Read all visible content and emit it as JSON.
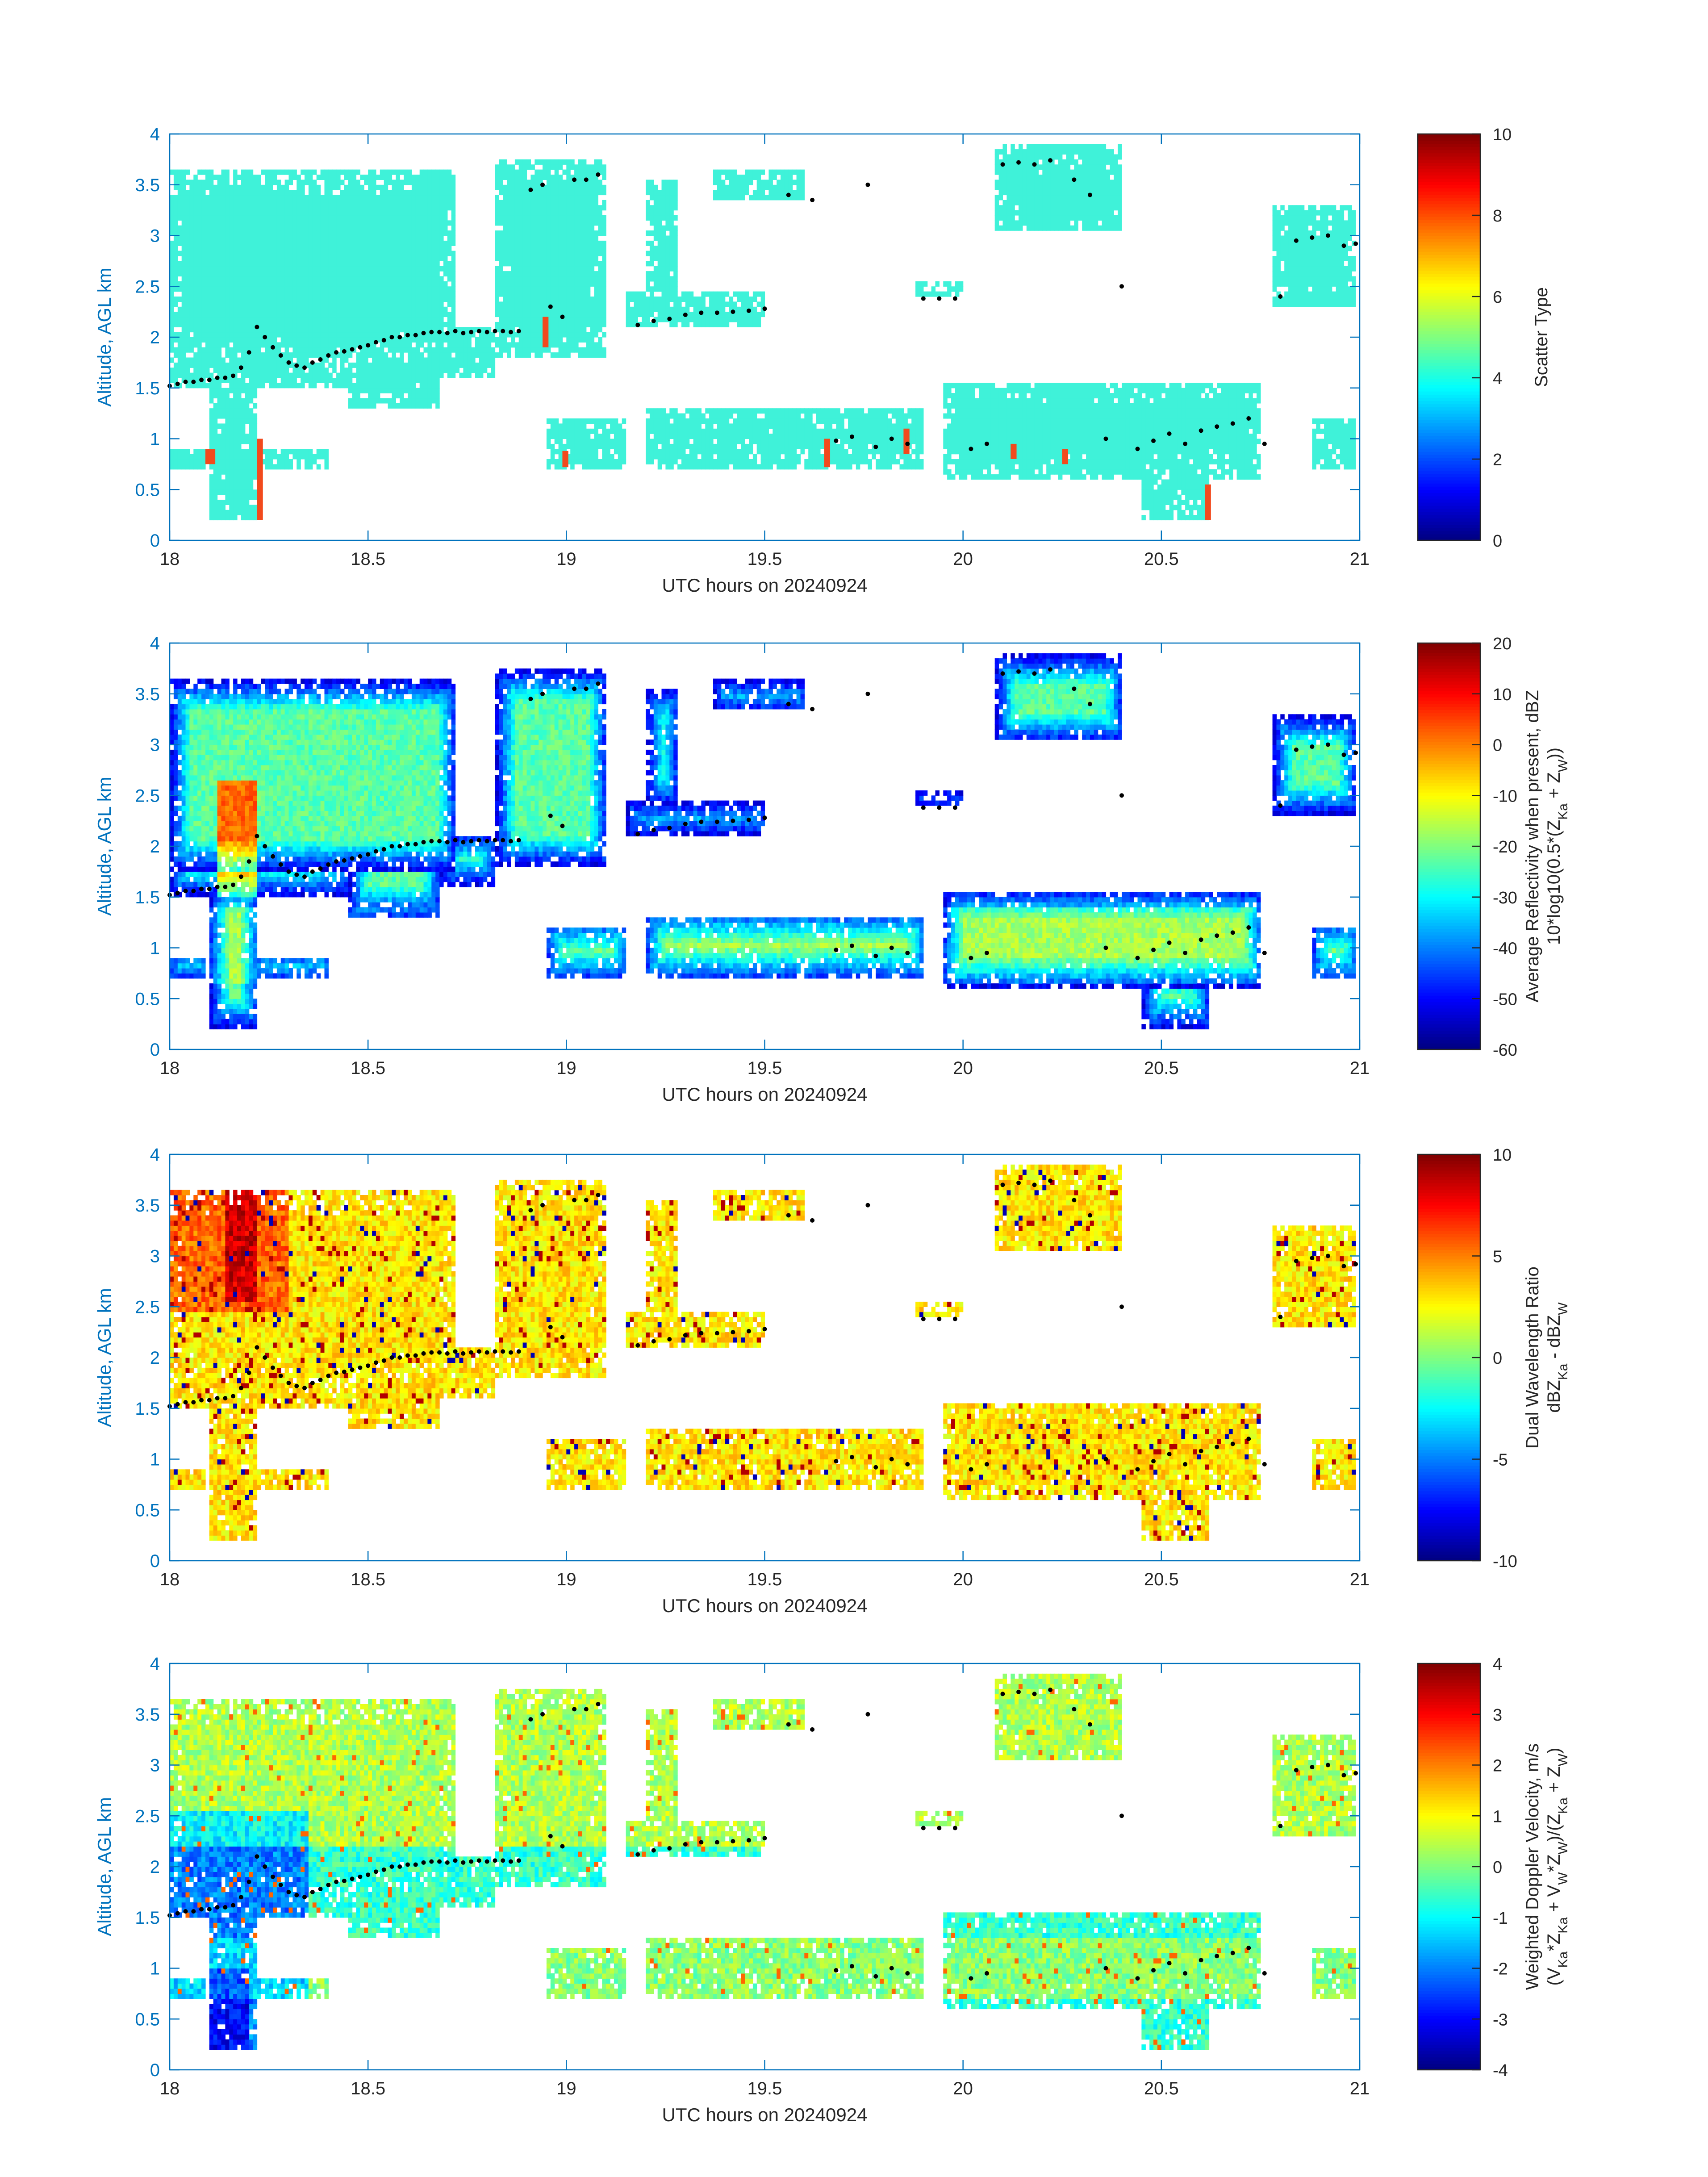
{
  "palette": {
    "axis_color": "#0072BD",
    "text_color": "#262626",
    "cloud_fill": "#3FF2D9",
    "rare_fill": "#F24A1D",
    "lcl_dot_color": "#000000"
  },
  "chart_data": [
    {
      "type": "heatmap",
      "title": "",
      "xlabel": "UTC hours on 20240924",
      "ylabel": "Altitude, AGL km",
      "xlim": [
        18,
        21
      ],
      "ylim": [
        0,
        4
      ],
      "xticks": [
        "18",
        "18.5",
        "19",
        "19.5",
        "20",
        "20.5",
        "21"
      ],
      "yticks": [
        "0",
        "0.5",
        "1",
        "1.5",
        "2",
        "2.5",
        "3",
        "3.5",
        "4"
      ],
      "grid": false,
      "colorbar": {
        "label": "Scatter Type",
        "label2": "",
        "colormap": "jet",
        "limits": [
          0,
          10
        ],
        "ticks": [
          "0",
          "2",
          "4",
          "6",
          "8",
          "10"
        ]
      },
      "field": "scatter_type"
    },
    {
      "type": "heatmap",
      "title": "",
      "xlabel": "UTC hours on 20240924",
      "ylabel": "Altitude, AGL km",
      "xlim": [
        18,
        21
      ],
      "ylim": [
        0,
        4
      ],
      "xticks": [
        "18",
        "18.5",
        "19",
        "19.5",
        "20",
        "20.5",
        "21"
      ],
      "yticks": [
        "0",
        "0.5",
        "1",
        "1.5",
        "2",
        "2.5",
        "3",
        "3.5",
        "4"
      ],
      "grid": false,
      "colorbar": {
        "label": "Average Reflectivity when present, dBZ",
        "label2": "10*log10(0.5*(Z_Ka + Z_W))",
        "colormap": "jet",
        "limits": [
          -60,
          20
        ],
        "ticks": [
          "-60",
          "-50",
          "-40",
          "-30",
          "-20",
          "-10",
          "0",
          "10",
          "20"
        ]
      },
      "field": "reflectivity"
    },
    {
      "type": "heatmap",
      "title": "",
      "xlabel": "UTC hours on 20240924",
      "ylabel": "Altitude, AGL km",
      "xlim": [
        18,
        21
      ],
      "ylim": [
        0,
        4
      ],
      "xticks": [
        "18",
        "18.5",
        "19",
        "19.5",
        "20",
        "20.5",
        "21"
      ],
      "yticks": [
        "0",
        "0.5",
        "1",
        "1.5",
        "2",
        "2.5",
        "3",
        "3.5",
        "4"
      ],
      "grid": false,
      "colorbar": {
        "label": "Dual Wavelength Ratio",
        "label2": "dBZ_Ka - dBZ_W",
        "colormap": "jet",
        "limits": [
          -10,
          10
        ],
        "ticks": [
          "-10",
          "-5",
          "0",
          "5",
          "10"
        ]
      },
      "field": "dwr"
    },
    {
      "type": "heatmap",
      "title": "",
      "xlabel": "UTC hours on 20240924",
      "ylabel": "Altitude, AGL km",
      "xlim": [
        18,
        21
      ],
      "ylim": [
        0,
        4
      ],
      "xticks": [
        "18",
        "18.5",
        "19",
        "19.5",
        "20",
        "20.5",
        "21"
      ],
      "yticks": [
        "0",
        "0.5",
        "1",
        "1.5",
        "2",
        "2.5",
        "3",
        "3.5",
        "4"
      ],
      "grid": false,
      "colorbar": {
        "label": "Weighted Doppler Velocity, m/s",
        "label2": "(V_Ka*Z_Ka + V_W*Z_W)/(Z_Ka + Z_W)",
        "colormap": "jet",
        "limits": [
          -4,
          4
        ],
        "ticks": [
          "-4",
          "-3",
          "-2",
          "-1",
          "0",
          "1",
          "2",
          "3",
          "4"
        ]
      },
      "field": "velocity"
    }
  ],
  "cloud_regions": [
    {
      "t0": 18.0,
      "t1": 18.72,
      "z0": 1.75,
      "z1": 3.6
    },
    {
      "t0": 18.0,
      "t1": 18.45,
      "z0": 1.5,
      "z1": 3.6
    },
    {
      "t0": 18.1,
      "t1": 18.22,
      "z0": 0.2,
      "z1": 1.6
    },
    {
      "t0": 18.45,
      "t1": 18.68,
      "z0": 1.3,
      "z1": 2.1
    },
    {
      "t0": 18.68,
      "t1": 18.82,
      "z0": 1.6,
      "z1": 2.1
    },
    {
      "t0": 18.82,
      "t1": 19.1,
      "z0": 1.8,
      "z1": 3.7
    },
    {
      "t0": 19.15,
      "t1": 19.5,
      "z0": 2.1,
      "z1": 2.4
    },
    {
      "t0": 19.2,
      "t1": 19.28,
      "z0": 2.4,
      "z1": 3.5
    },
    {
      "t0": 19.37,
      "t1": 19.6,
      "z0": 3.3,
      "z1": 3.6
    },
    {
      "t0": 19.88,
      "t1": 20.0,
      "z0": 2.35,
      "z1": 2.5
    },
    {
      "t0": 20.08,
      "t1": 20.4,
      "z0": 3.0,
      "z1": 3.85
    },
    {
      "t0": 20.78,
      "t1": 20.99,
      "z0": 2.3,
      "z1": 3.25
    },
    {
      "t0": 18.0,
      "t1": 18.4,
      "z0": 0.7,
      "z1": 0.9
    },
    {
      "t0": 18.95,
      "t1": 19.15,
      "z0": 0.7,
      "z1": 1.2
    },
    {
      "t0": 19.2,
      "t1": 19.9,
      "z0": 0.7,
      "z1": 1.3
    },
    {
      "t0": 19.95,
      "t1": 20.75,
      "z0": 0.6,
      "z1": 1.55
    },
    {
      "t0": 20.45,
      "t1": 20.62,
      "z0": 0.2,
      "z1": 0.8
    },
    {
      "t0": 20.88,
      "t1": 20.99,
      "z0": 0.7,
      "z1": 1.2
    }
  ],
  "rare_columns": [
    {
      "t": 18.09,
      "z0": 0.75,
      "z1": 0.9
    },
    {
      "t": 18.1,
      "z0": 0.75,
      "z1": 0.9
    },
    {
      "t": 18.22,
      "z0": 0.2,
      "z1": 1.0
    },
    {
      "t": 18.94,
      "z0": 1.9,
      "z1": 2.2
    },
    {
      "t": 18.99,
      "z0": 0.72,
      "z1": 0.88
    },
    {
      "t": 19.65,
      "z0": 0.72,
      "z1": 1.0
    },
    {
      "t": 19.85,
      "z0": 0.85,
      "z1": 1.1
    },
    {
      "t": 20.12,
      "z0": 0.8,
      "z1": 0.95
    },
    {
      "t": 20.25,
      "z0": 0.75,
      "z1": 0.9
    },
    {
      "t": 20.61,
      "z0": 0.2,
      "z1": 0.55
    }
  ],
  "base_dots": {
    "t": [
      18.0,
      18.02,
      18.04,
      18.06,
      18.08,
      18.1,
      18.12,
      18.14,
      18.16,
      18.18,
      18.2,
      18.22,
      18.24,
      18.26,
      18.28,
      18.3,
      18.32,
      18.34,
      18.36,
      18.38,
      18.4,
      18.42,
      18.44,
      18.46,
      18.48,
      18.5,
      18.52,
      18.54,
      18.56,
      18.58,
      18.6,
      18.62,
      18.64,
      18.66,
      18.68,
      18.7,
      18.72,
      18.74,
      18.76,
      18.78,
      18.8,
      18.82,
      18.84,
      18.86,
      18.88,
      18.91,
      18.94,
      18.96,
      18.99,
      19.02,
      19.05,
      19.08,
      19.18,
      19.22,
      19.26,
      19.3,
      19.34,
      19.38,
      19.42,
      19.46,
      19.5,
      19.56,
      19.62,
      19.68,
      19.72,
      19.76,
      19.78,
      19.82,
      19.86,
      19.9,
      19.94,
      19.98,
      20.02,
      20.06,
      20.1,
      20.14,
      20.18,
      20.22,
      20.28,
      20.32,
      20.36,
      20.4,
      20.44,
      20.48,
      20.52,
      20.56,
      20.6,
      20.64,
      20.68,
      20.72,
      20.76,
      20.8,
      20.84,
      20.88,
      20.92,
      20.96,
      20.99
    ],
    "z": [
      1.52,
      1.54,
      1.56,
      1.56,
      1.58,
      1.58,
      1.6,
      1.6,
      1.62,
      1.7,
      1.85,
      2.1,
      2.0,
      1.9,
      1.82,
      1.75,
      1.72,
      1.7,
      1.75,
      1.78,
      1.82,
      1.85,
      1.86,
      1.88,
      1.9,
      1.92,
      1.95,
      1.97,
      2.0,
      2.0,
      2.02,
      2.02,
      2.04,
      2.05,
      2.05,
      2.04,
      2.06,
      2.04,
      2.05,
      2.06,
      2.05,
      2.06,
      2.06,
      2.05,
      2.06,
      3.45,
      3.5,
      2.3,
      2.2,
      3.55,
      3.55,
      3.6,
      2.12,
      2.16,
      2.18,
      2.22,
      2.24,
      2.24,
      2.25,
      2.26,
      2.28,
      3.4,
      3.35,
      0.98,
      1.02,
      3.5,
      0.92,
      1.0,
      0.95,
      2.38,
      2.38,
      2.38,
      0.9,
      0.95,
      3.7,
      3.72,
      3.7,
      3.74,
      3.55,
      3.4,
      1.0,
      2.5,
      0.9,
      0.98,
      1.05,
      0.95,
      1.08,
      1.12,
      1.15,
      1.2,
      0.95,
      2.4,
      2.95,
      2.98,
      3.0,
      2.9,
      2.92
    ]
  }
}
